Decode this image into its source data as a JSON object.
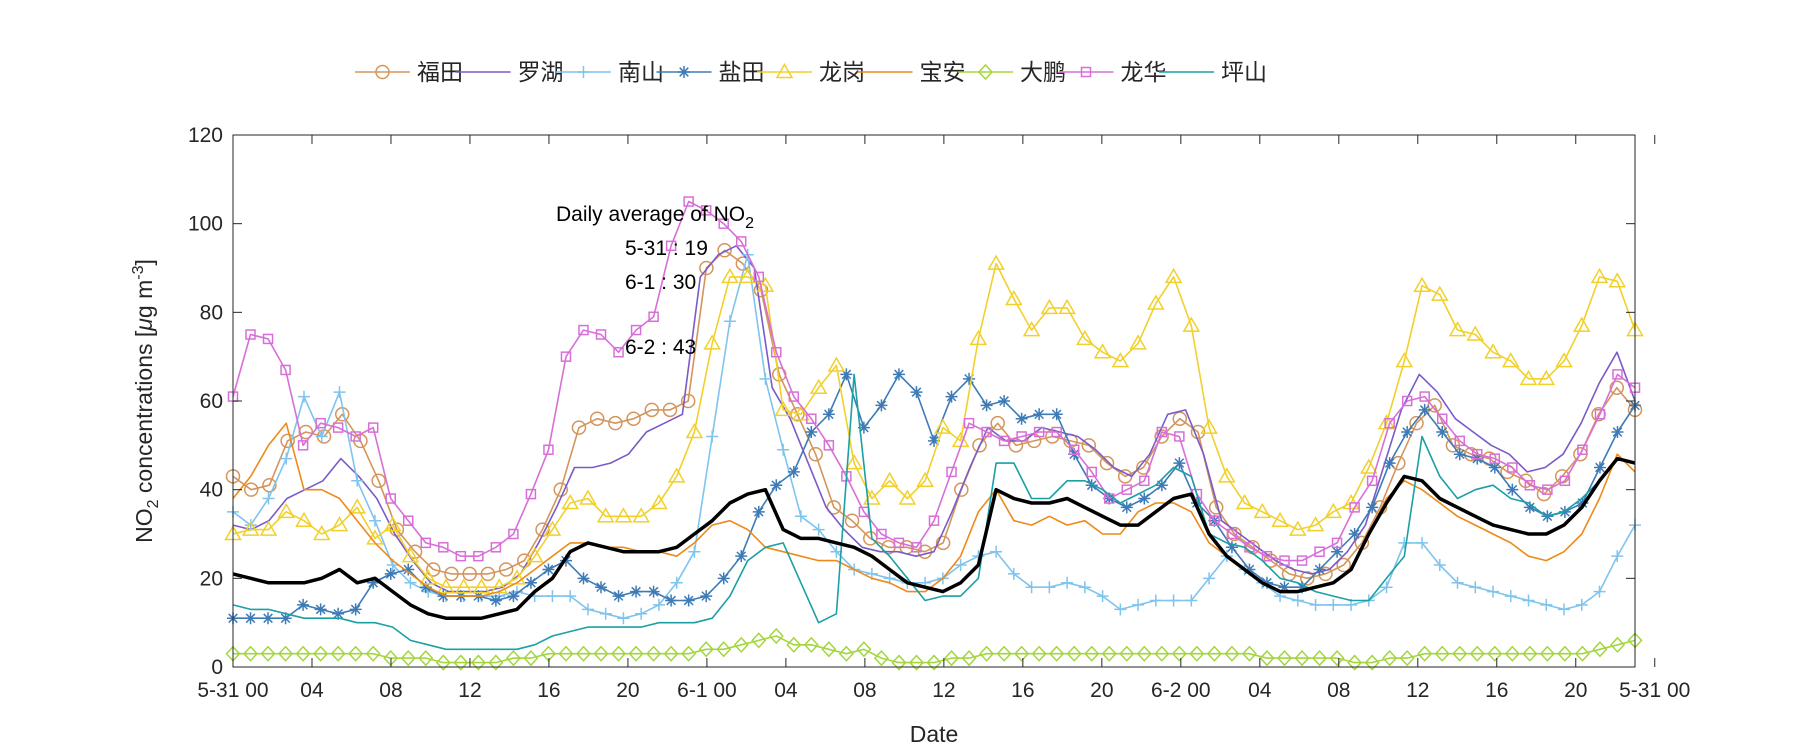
{
  "chart_data": {
    "type": "line",
    "xlabel": "Date",
    "ylabel": "NO2 concentrations [μg m-3]",
    "ylabel_parts": {
      "pre": "NO",
      "sub": "2",
      "mid": " concentrations [",
      "mu": "μ",
      "unit": "g m",
      "sup": "-3",
      "post": "]"
    },
    "ylim": [
      0,
      120
    ],
    "yticks": [
      0,
      20,
      40,
      60,
      80,
      100,
      120
    ],
    "x_range_hours": [
      0,
      71
    ],
    "xtick_labels": [
      "5-31 00",
      "04",
      "08",
      "12",
      "16",
      "20",
      "6-1 00",
      "04",
      "08",
      "12",
      "16",
      "20",
      "6-2 00",
      "04",
      "08",
      "12",
      "16",
      "20",
      "5-31 00"
    ],
    "grid": false,
    "legend_position": "top",
    "annotation": {
      "title_pre": "Daily average of NO",
      "title_sub": "2",
      "lines": [
        "5-31 : 19",
        "6-1 : 30",
        "6-2 : 43"
      ]
    },
    "series": [
      {
        "name": "福田",
        "color": "#d4955a",
        "marker": "circle",
        "values": [
          43,
          40,
          41,
          51,
          53,
          52,
          57,
          51,
          42,
          31,
          26,
          22,
          21,
          21,
          21,
          22,
          24,
          31,
          40,
          54,
          56,
          55,
          56,
          58,
          58,
          60,
          90,
          94,
          91,
          85,
          66,
          57,
          48,
          36,
          33,
          29,
          27,
          27,
          26,
          28,
          40,
          50,
          55,
          50,
          51,
          52,
          51,
          50,
          46,
          43,
          45,
          52,
          56,
          53,
          36,
          30,
          27,
          24,
          21,
          20,
          21,
          23,
          28,
          36,
          46,
          55,
          59,
          50,
          48,
          47,
          44,
          42,
          39,
          43,
          48,
          57,
          63,
          58
        ]
      },
      {
        "name": "罗湖",
        "color": "#7a5bc8",
        "marker": "none",
        "values": [
          32,
          31,
          33,
          38,
          40,
          42,
          47,
          43,
          38,
          30,
          24,
          19,
          17,
          17,
          17,
          18,
          21,
          28,
          36,
          45,
          45,
          46,
          48,
          53,
          55,
          57,
          88,
          93,
          95,
          90,
          63,
          56,
          46,
          36,
          31,
          27,
          26,
          26,
          25,
          26,
          35,
          45,
          54,
          51,
          51,
          54,
          53,
          52,
          49,
          45,
          43,
          48,
          57,
          58,
          48,
          33,
          30,
          27,
          24,
          22,
          21,
          22,
          26,
          32,
          45,
          58,
          66,
          62,
          56,
          53,
          50,
          48,
          44,
          45,
          48,
          55,
          64,
          71,
          60
        ]
      },
      {
        "name": "南山",
        "color": "#7fc4ee",
        "marker": "plus",
        "values": [
          35,
          32,
          38,
          47,
          61,
          52,
          62,
          42,
          33,
          23,
          19,
          17,
          16,
          16,
          16,
          16,
          17,
          16,
          16,
          16,
          13,
          12,
          11,
          12,
          14,
          19,
          26,
          52,
          78,
          93,
          65,
          49,
          34,
          31,
          26,
          22,
          21,
          20,
          19,
          19,
          20,
          23,
          25,
          26,
          21,
          18,
          18,
          19,
          18,
          16,
          13,
          14,
          15,
          15,
          15,
          20,
          25,
          22,
          19,
          16,
          15,
          14,
          14,
          14,
          15,
          18,
          28,
          28,
          23,
          19,
          18,
          17,
          16,
          15,
          14,
          13,
          14,
          17,
          25,
          32
        ]
      },
      {
        "name": "盐田",
        "color": "#3e7bb6",
        "marker": "star",
        "values": [
          11,
          11,
          11,
          11,
          14,
          13,
          12,
          13,
          19,
          21,
          22,
          18,
          16,
          16,
          16,
          15,
          16,
          19,
          22,
          24,
          20,
          18,
          16,
          17,
          17,
          15,
          15,
          16,
          20,
          25,
          35,
          41,
          44,
          53,
          57,
          66,
          54,
          59,
          66,
          62,
          51,
          61,
          65,
          59,
          60,
          56,
          57,
          57,
          48,
          41,
          38,
          36,
          38,
          41,
          46,
          37,
          33,
          27,
          22,
          19,
          18,
          18,
          22,
          26,
          30,
          36,
          46,
          53,
          58,
          53,
          48,
          47,
          45,
          40,
          36,
          34,
          35,
          37,
          45,
          53,
          59
        ]
      },
      {
        "name": "龙岗",
        "color": "#f2d02a",
        "marker": "triangle",
        "values": [
          30,
          31,
          31,
          35,
          33,
          30,
          32,
          36,
          29,
          32,
          25,
          20,
          18,
          18,
          18,
          18,
          20,
          25,
          31,
          37,
          38,
          34,
          34,
          34,
          37,
          43,
          53,
          73,
          88,
          88,
          86,
          58,
          57,
          63,
          68,
          46,
          38,
          42,
          38,
          42,
          54,
          51,
          74,
          91,
          83,
          76,
          81,
          81,
          74,
          71,
          69,
          73,
          82,
          88,
          77,
          54,
          43,
          37,
          35,
          33,
          31,
          32,
          35,
          37,
          45,
          55,
          69,
          86,
          84,
          76,
          75,
          71,
          69,
          65,
          65,
          69,
          77,
          88,
          87,
          76
        ]
      },
      {
        "name": "宝安",
        "color": "#ee8a1a",
        "marker": "none",
        "values": [
          38,
          43,
          50,
          55,
          40,
          40,
          38,
          33,
          28,
          24,
          21,
          18,
          16,
          16,
          16,
          17,
          19,
          22,
          25,
          28,
          28,
          27,
          27,
          26,
          26,
          25,
          28,
          32,
          33,
          31,
          27,
          26,
          25,
          24,
          24,
          22,
          20,
          19,
          17,
          17,
          20,
          25,
          35,
          40,
          33,
          32,
          34,
          32,
          33,
          30,
          30,
          35,
          37,
          37,
          35,
          28,
          25,
          22,
          19,
          17,
          17,
          18,
          19,
          22,
          30,
          38,
          42,
          40,
          37,
          34,
          32,
          30,
          28,
          25,
          24,
          26,
          30,
          38,
          48,
          44
        ]
      },
      {
        "name": "大鹏",
        "color": "#a3d63e",
        "marker": "diamond",
        "values": [
          3,
          3,
          3,
          3,
          3,
          3,
          3,
          3,
          3,
          2,
          2,
          2,
          1,
          1,
          1,
          1,
          2,
          2,
          3,
          3,
          3,
          3,
          3,
          3,
          3,
          3,
          3,
          4,
          4,
          5,
          6,
          7,
          5,
          5,
          4,
          3,
          4,
          2,
          1,
          1,
          1,
          2,
          2,
          3,
          3,
          3,
          3,
          3,
          3,
          3,
          3,
          3,
          3,
          3,
          3,
          3,
          3,
          3,
          3,
          2,
          2,
          2,
          2,
          2,
          1,
          1,
          2,
          2,
          3,
          3,
          3,
          3,
          3,
          3,
          3,
          3,
          3,
          3,
          4,
          5,
          6
        ]
      },
      {
        "name": "龙华",
        "color": "#d86fd8",
        "marker": "square",
        "values": [
          61,
          75,
          74,
          67,
          50,
          55,
          54,
          52,
          54,
          38,
          33,
          28,
          27,
          25,
          25,
          27,
          30,
          39,
          49,
          70,
          76,
          75,
          71,
          76,
          79,
          95,
          105,
          103,
          100,
          96,
          88,
          71,
          61,
          56,
          50,
          43,
          35,
          30,
          28,
          27,
          33,
          44,
          55,
          53,
          51,
          52,
          53,
          53,
          49,
          44,
          38,
          40,
          42,
          53,
          52,
          39,
          33,
          30,
          27,
          25,
          24,
          24,
          26,
          28,
          36,
          42,
          55,
          60,
          61,
          56,
          51,
          48,
          47,
          45,
          41,
          40,
          42,
          49,
          57,
          66,
          63
        ]
      },
      {
        "name": "坪山",
        "color": "#1aa0a5",
        "marker": "none",
        "values": [
          14,
          13,
          13,
          12,
          11,
          11,
          11,
          10,
          10,
          9,
          6,
          5,
          4,
          4,
          4,
          4,
          4,
          5,
          7,
          8,
          9,
          9,
          9,
          9,
          10,
          10,
          10,
          11,
          16,
          24,
          27,
          28,
          19,
          10,
          12,
          66,
          29,
          25,
          20,
          15,
          16,
          16,
          20,
          46,
          46,
          38,
          38,
          42,
          42,
          40,
          37,
          39,
          41,
          45,
          43,
          30,
          28,
          27,
          24,
          20,
          19,
          17,
          16,
          15,
          15,
          20,
          25,
          52,
          43,
          38,
          40,
          41,
          38,
          37,
          34,
          35,
          38,
          42,
          47,
          46
        ]
      },
      {
        "name": "",
        "color": "#000000",
        "marker": "none",
        "values": [
          21,
          20,
          19,
          19,
          19,
          20,
          22,
          19,
          20,
          17,
          14,
          12,
          11,
          11,
          11,
          12,
          13,
          17,
          20,
          26,
          28,
          27,
          26,
          26,
          26,
          27,
          30,
          33,
          37,
          39,
          40,
          31,
          29,
          29,
          28,
          27,
          25,
          22,
          19,
          18,
          17,
          19,
          23,
          40,
          38,
          37,
          37,
          38,
          36,
          34,
          32,
          32,
          35,
          38,
          39,
          30,
          25,
          22,
          19,
          17,
          17,
          18,
          19,
          22,
          30,
          37,
          43,
          42,
          38,
          36,
          34,
          32,
          31,
          30,
          30,
          32,
          36,
          42,
          47,
          46
        ]
      }
    ]
  }
}
